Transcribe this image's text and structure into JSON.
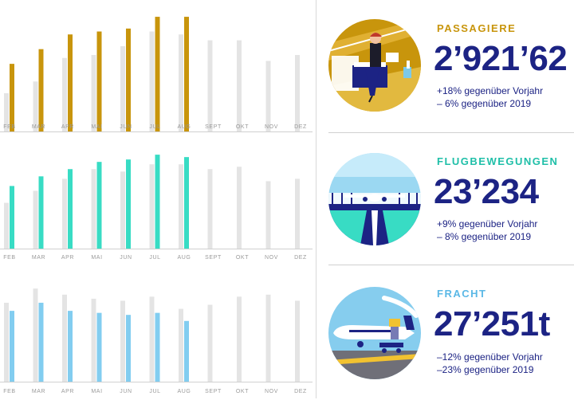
{
  "chart_data": [
    {
      "type": "bar",
      "categories": [
        "JAN",
        "FEB",
        "MAR",
        "APR",
        "MAI",
        "JUN",
        "JUL",
        "AUG",
        "SEPT",
        "OKT",
        "NOV",
        "DEZ"
      ],
      "series": [
        {
          "values": [
            1.9,
            1.3,
            1.7,
            2.5,
            2.6,
            2.9,
            3.4,
            3.3,
            3.1,
            3.1,
            2.4,
            2.6
          ]
        },
        {
          "values": [
            1.7,
            2.3,
            2.8,
            3.3,
            3.4,
            3.5,
            3.9,
            3.9,
            null,
            null,
            null,
            null
          ]
        }
      ],
      "ylim": [
        0,
        4.2
      ]
    },
    {
      "type": "bar",
      "categories": [
        "JAN",
        "FEB",
        "MAR",
        "APR",
        "MAI",
        "JUN",
        "JUL",
        "AUG",
        "SEPT",
        "OKT",
        "NOV",
        "DEZ"
      ],
      "series": [
        {
          "values": [
            22,
            19,
            24,
            29,
            33,
            32,
            35,
            35,
            33,
            34,
            28,
            29
          ]
        },
        {
          "values": [
            21,
            26,
            30,
            33,
            36,
            37,
            39,
            38,
            null,
            null,
            null,
            null
          ]
        }
      ],
      "ylim": [
        0,
        44
      ]
    },
    {
      "type": "bar",
      "categories": [
        "JAN",
        "FEB",
        "MAR",
        "APR",
        "MAI",
        "JUN",
        "JUL",
        "AUG",
        "SEPT",
        "OKT",
        "NOV",
        "DEZ"
      ],
      "series": [
        {
          "values": [
            36,
            39,
            46,
            43,
            41,
            40,
            42,
            36,
            38,
            42,
            43,
            40
          ]
        },
        {
          "values": [
            33,
            35,
            39,
            35,
            34,
            33,
            34,
            30,
            null,
            null,
            null,
            null
          ]
        }
      ],
      "ylim": [
        0,
        50
      ]
    }
  ],
  "stats": {
    "passagiere": {
      "title": "PASSAGIERE",
      "value": "2’921’62",
      "line1": "+18% gegenüber Vorjahr",
      "line2": "– 6% gegenüber 2019"
    },
    "flugbewegungen": {
      "title": "FLUGBEWEGUNGEN",
      "value": "23’234",
      "line1": "+9% gegenüber Vorjahr",
      "line2": "– 8% gegenüber 2019"
    },
    "fracht": {
      "title": "FRACHT",
      "value": "27’251t",
      "line1": "–12% gegenüber Vorjahr",
      "line2": "–23% gegenüber 2019"
    }
  },
  "colors": {
    "passagiere": "#c8950c",
    "flugbewegungen": "#38dcc4",
    "fracht": "#82cdf0",
    "prior_year": "#e4e4e4",
    "navy": "#1c2384",
    "tick": "#9a9a9a"
  },
  "icons": {
    "passagiere": "passenger-lounge-icon",
    "flugbewegungen": "airplane-runway-icon",
    "fracht": "cargo-plane-icon"
  }
}
